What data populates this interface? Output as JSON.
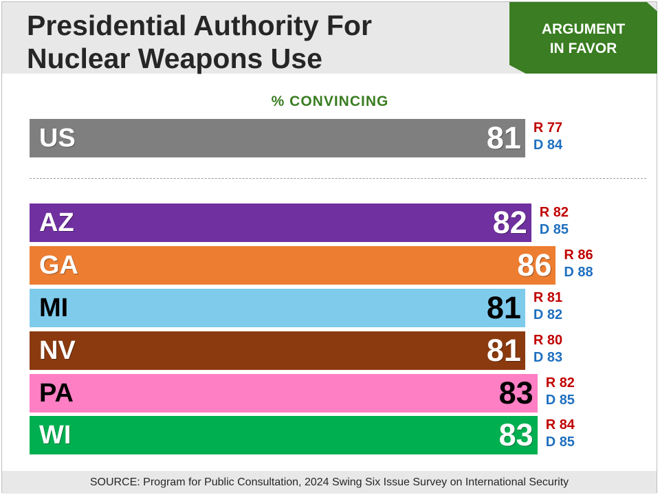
{
  "header": {
    "title_line1": "Presidential Authority For",
    "title_line2": "Nuclear Weapons Use",
    "badge_line1": "ARGUMENT",
    "badge_line2": "IN FAVOR"
  },
  "footer": {
    "source": "SOURCE: Program for Public Consultation, 2024 Swing Six Issue Survey on International Security"
  },
  "chart_data": {
    "type": "bar",
    "orientation": "horizontal",
    "title": "Presidential Authority For Nuclear Weapons Use",
    "subtitle": "% CONVINCING",
    "categories": [
      "US",
      "AZ",
      "GA",
      "MI",
      "NV",
      "PA",
      "WI"
    ],
    "values": [
      81,
      82,
      86,
      81,
      81,
      83,
      83
    ],
    "series": [
      {
        "name": "R",
        "values": [
          77,
          82,
          86,
          81,
          80,
          82,
          84
        ]
      },
      {
        "name": "D",
        "values": [
          84,
          85,
          88,
          82,
          83,
          85,
          85
        ]
      }
    ],
    "bar_colors": [
      "#7f7f7f",
      "#7030a0",
      "#ed7d31",
      "#7fcbec",
      "#8b3a0f",
      "#ff7fc4",
      "#00b050"
    ],
    "label_colors": [
      "#ffffff",
      "#ffffff",
      "#ffffff",
      "#000000",
      "#ffffff",
      "#000000",
      "#ffffff"
    ],
    "party_colors": {
      "R": "#c00000",
      "D": "#1f6fbf"
    },
    "grid": false,
    "legend": "none"
  }
}
